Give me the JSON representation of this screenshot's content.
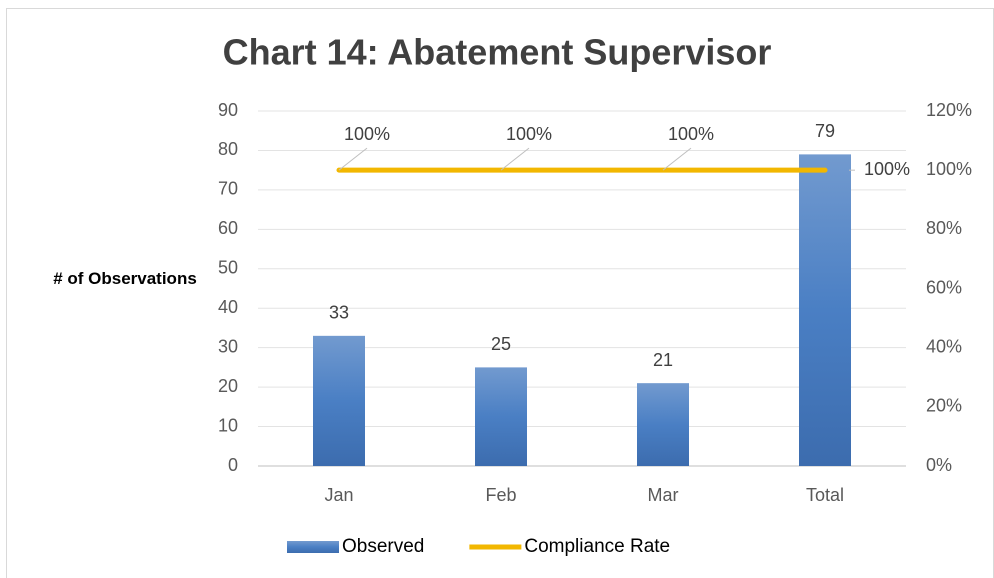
{
  "chart_data": {
    "type": "bar",
    "title": "Chart 14: Abatement Supervisor",
    "y_label": "# of Observations",
    "categories": [
      "Jan",
      "Feb",
      "Mar",
      "Total"
    ],
    "series": [
      {
        "name": "Observed",
        "color": "#4a7bbf",
        "values": [
          33,
          25,
          21,
          79
        ]
      },
      {
        "name": "Compliance Rate",
        "type": "line",
        "axis": "y2",
        "color": "#f2b700",
        "values": [
          100,
          100,
          100,
          100
        ],
        "value_labels": [
          "100%",
          "100%",
          "100%",
          "100%"
        ]
      }
    ],
    "ylim": [
      0,
      90
    ],
    "yticks": [
      0,
      10,
      20,
      30,
      40,
      50,
      60,
      70,
      80,
      90
    ],
    "y2lim": [
      0,
      120
    ],
    "y2ticks": [
      {
        "value": 0,
        "label": "0%"
      },
      {
        "value": 20,
        "label": "20%"
      },
      {
        "value": 40,
        "label": "40%"
      },
      {
        "value": 60,
        "label": "60%"
      },
      {
        "value": 80,
        "label": "80%"
      },
      {
        "value": 100,
        "label": "100%"
      },
      {
        "value": 120,
        "label": "120%"
      }
    ],
    "grid": true,
    "legend": "bottom"
  }
}
